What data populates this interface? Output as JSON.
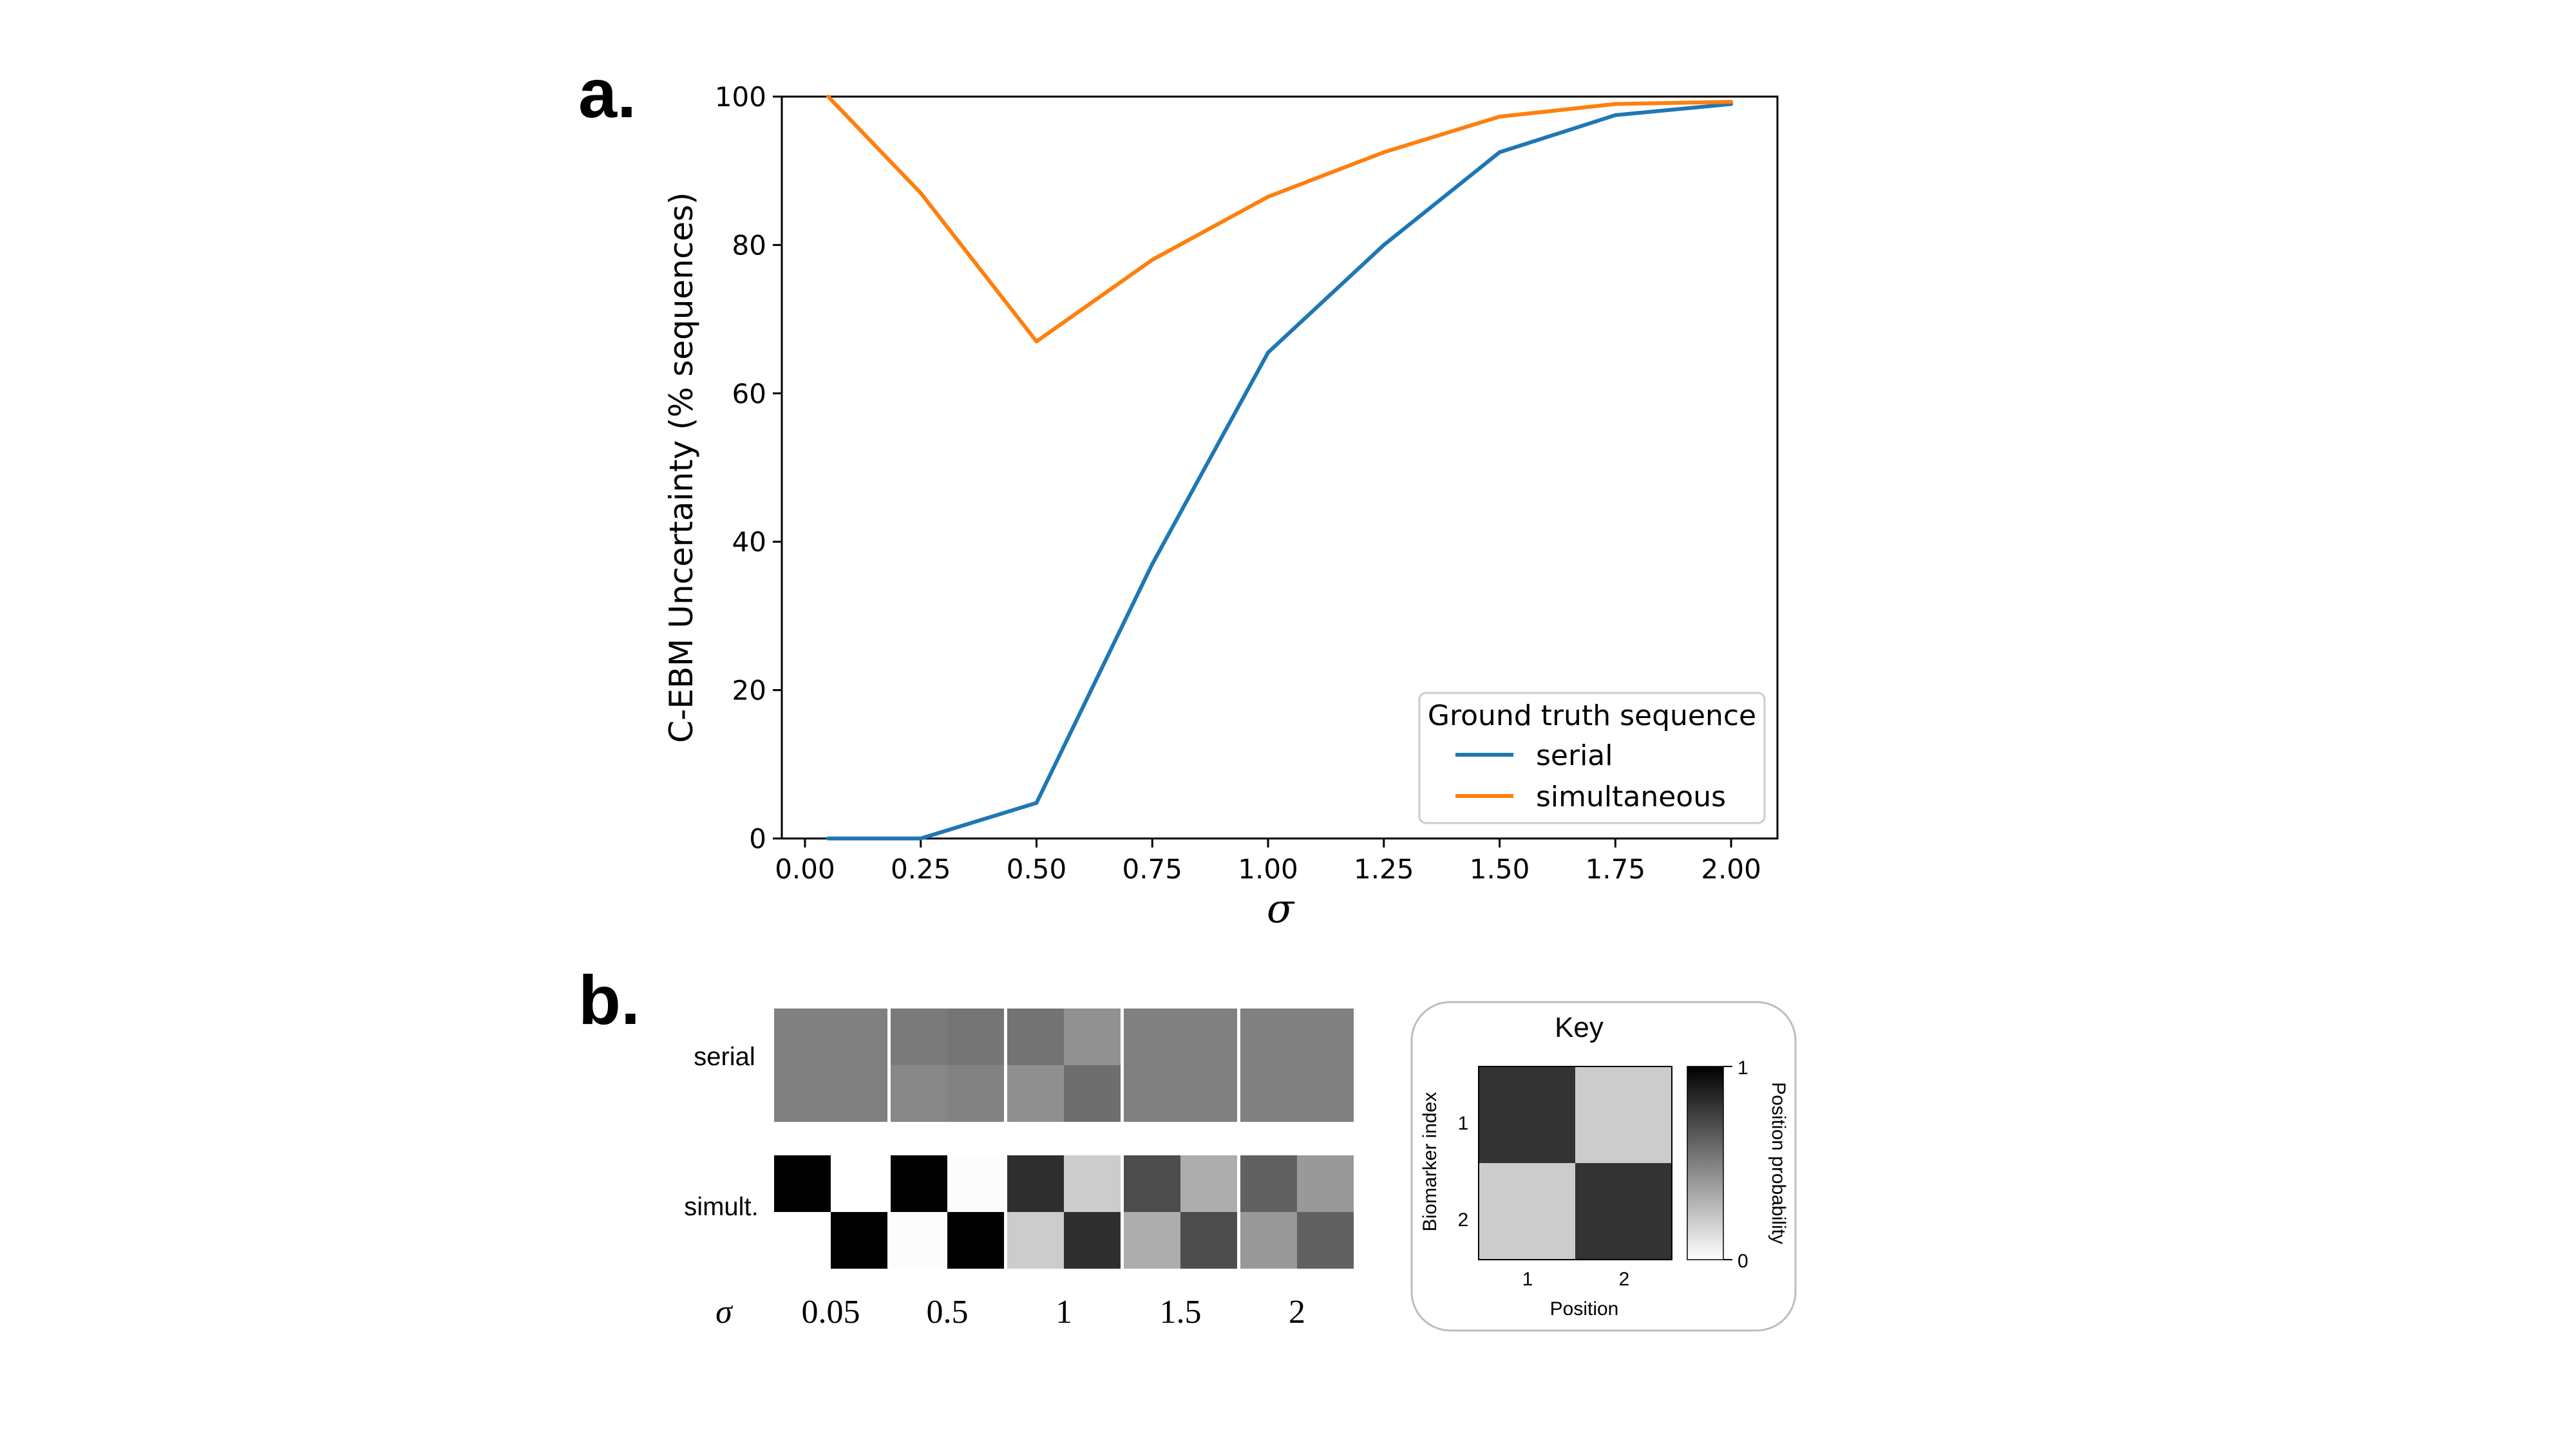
{
  "panel_a": {
    "letter": "a.",
    "chart_data": {
      "type": "line",
      "xlabel": "σ",
      "ylabel": "C-EBM Uncertainty (% sequences)",
      "xlim": [
        -0.05,
        2.1
      ],
      "ylim": [
        0,
        100
      ],
      "x_ticks": [
        0,
        0.25,
        0.5,
        0.75,
        1.0,
        1.25,
        1.5,
        1.75,
        2.0
      ],
      "x_tick_labels": [
        "0.00",
        "0.25",
        "0.50",
        "0.75",
        "1.00",
        "1.25",
        "1.50",
        "1.75",
        "2.00"
      ],
      "y_ticks": [
        0,
        20,
        40,
        60,
        80,
        100
      ],
      "y_tick_labels": [
        "0",
        "20",
        "40",
        "60",
        "80",
        "100"
      ],
      "legend_title": "Ground truth sequence",
      "legend_position": "lower-right",
      "grid": false,
      "x": [
        0.05,
        0.25,
        0.5,
        0.75,
        1.0,
        1.25,
        1.5,
        1.75,
        2.0
      ],
      "series": [
        {
          "name": "serial",
          "color": "#1f77b4",
          "values": [
            0,
            0,
            4.8,
            37,
            65.5,
            80,
            92.5,
            97.5,
            99
          ]
        },
        {
          "name": "simultaneous",
          "color": "#ff7f0e",
          "values": [
            100,
            87,
            67,
            78,
            86.5,
            92.5,
            97.3,
            99,
            99.3
          ]
        }
      ]
    }
  },
  "panel_b": {
    "letter": "b.",
    "chart_data": {
      "type": "heatmap",
      "row_labels": [
        "serial",
        "simult."
      ],
      "sigma_symbol": "σ",
      "sigma_labels": [
        "0.05",
        "0.5",
        "1",
        "1.5",
        "2"
      ],
      "matrices": {
        "serial": [
          [
            [
              0.5,
              0.5
            ],
            [
              0.5,
              0.5
            ]
          ],
          [
            [
              0.52,
              0.54
            ],
            [
              0.47,
              0.49
            ]
          ],
          [
            [
              0.55,
              0.43
            ],
            [
              0.44,
              0.57
            ]
          ],
          [
            [
              0.5,
              0.5
            ],
            [
              0.5,
              0.5
            ]
          ],
          [
            [
              0.5,
              0.5
            ],
            [
              0.5,
              0.5
            ]
          ]
        ],
        "simult.": [
          [
            [
              1.0,
              0.0
            ],
            [
              0.0,
              1.0
            ]
          ],
          [
            [
              1.0,
              0.01
            ],
            [
              0.01,
              1.0
            ]
          ],
          [
            [
              0.82,
              0.2
            ],
            [
              0.2,
              0.82
            ]
          ],
          [
            [
              0.7,
              0.32
            ],
            [
              0.32,
              0.7
            ]
          ],
          [
            [
              0.62,
              0.4
            ],
            [
              0.4,
              0.62
            ]
          ]
        ]
      }
    },
    "key": {
      "title": "Key",
      "y_label": "Biomarker index",
      "x_label": "Position",
      "row_ticks": [
        "1",
        "2"
      ],
      "col_ticks": [
        "1",
        "2"
      ],
      "colorbar_label": "Position probability",
      "colorbar_max": "1",
      "colorbar_min": "0",
      "matrix": [
        [
          0.8,
          0.2
        ],
        [
          0.2,
          0.8
        ]
      ]
    }
  }
}
